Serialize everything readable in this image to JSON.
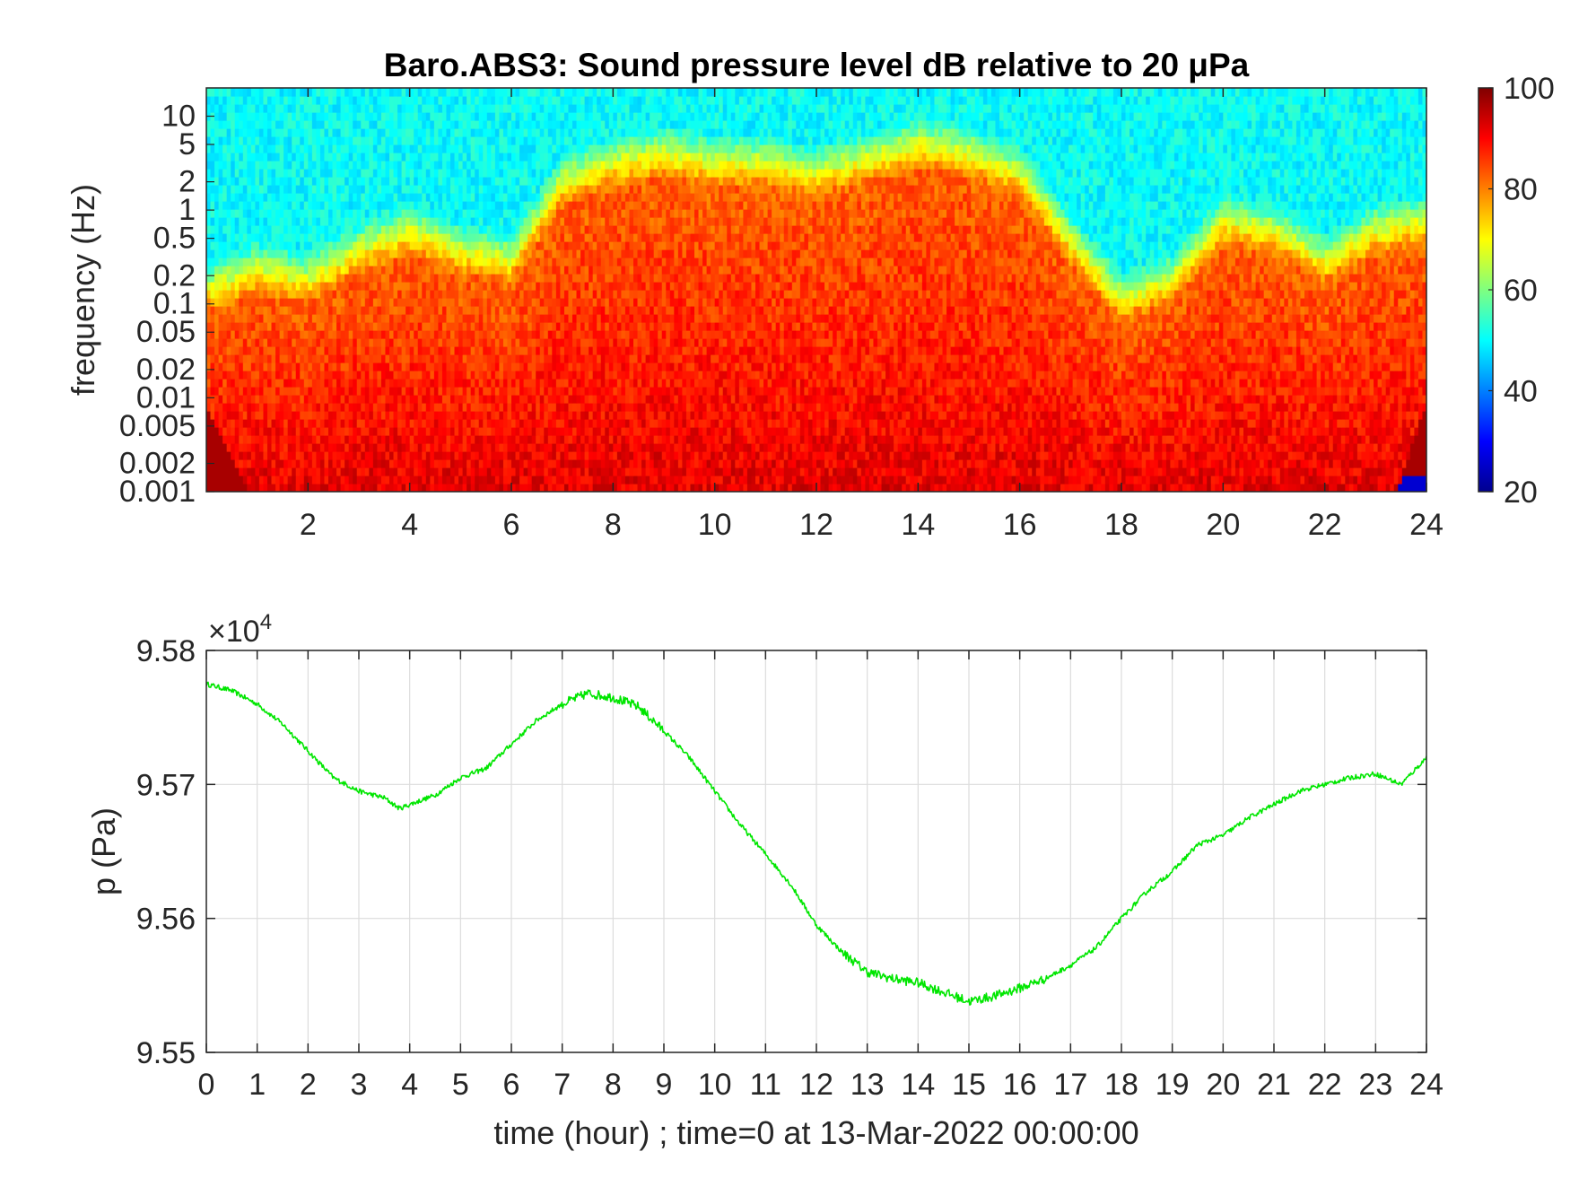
{
  "chart_data": [
    {
      "type": "heatmap",
      "title": "Baro.ABS3: Sound pressure level dB relative to 20 μPa",
      "xlabel": "",
      "ylabel": "frequency (Hz)",
      "x_ticks": [
        "2",
        "4",
        "6",
        "8",
        "10",
        "12",
        "14",
        "16",
        "18",
        "20",
        "22",
        "24"
      ],
      "x_tick_values": [
        2,
        4,
        6,
        8,
        10,
        12,
        14,
        16,
        18,
        20,
        22,
        24
      ],
      "xlim": [
        0,
        24
      ],
      "y_scale": "log",
      "ylim": [
        0.001,
        20
      ],
      "y_ticks": [
        "10",
        "5",
        "2",
        "1",
        "0.5",
        "0.2",
        "0.1",
        "0.05",
        "0.02",
        "0.01",
        "0.005",
        "0.002",
        "0.001"
      ],
      "y_tick_values": [
        10,
        5,
        2,
        1,
        0.5,
        0.2,
        0.1,
        0.05,
        0.02,
        0.01,
        0.005,
        0.002,
        0.001
      ],
      "colorbar": {
        "colormap": "jet",
        "range": [
          20,
          100
        ],
        "ticks": [
          "100",
          "80",
          "60",
          "40",
          "20"
        ],
        "tick_values": [
          100,
          80,
          60,
          40,
          20
        ]
      },
      "hour_level_profile": [
        {
          "hour": 0,
          "level": 0.25
        },
        {
          "hour": 1,
          "level": 0.35
        },
        {
          "hour": 2,
          "level": 0.3
        },
        {
          "hour": 3,
          "level": 0.45
        },
        {
          "hour": 4,
          "level": 0.55
        },
        {
          "hour": 5,
          "level": 0.45
        },
        {
          "hour": 6,
          "level": 0.4
        },
        {
          "hour": 7,
          "level": 0.8
        },
        {
          "hour": 8,
          "level": 0.9
        },
        {
          "hour": 9,
          "level": 0.95
        },
        {
          "hour": 10,
          "level": 0.9
        },
        {
          "hour": 11,
          "level": 0.9
        },
        {
          "hour": 12,
          "level": 0.85
        },
        {
          "hour": 13,
          "level": 0.92
        },
        {
          "hour": 14,
          "level": 1.0
        },
        {
          "hour": 15,
          "level": 0.95
        },
        {
          "hour": 16,
          "level": 0.85
        },
        {
          "hour": 17,
          "level": 0.5
        },
        {
          "hour": 18,
          "level": 0.2
        },
        {
          "hour": 19,
          "level": 0.3
        },
        {
          "hour": 20,
          "level": 0.6
        },
        {
          "hour": 21,
          "level": 0.55
        },
        {
          "hour": 22,
          "level": 0.4
        },
        {
          "hour": 23,
          "level": 0.55
        },
        {
          "hour": 24,
          "level": 0.6
        }
      ]
    },
    {
      "type": "line",
      "title": "",
      "xlabel": "time (hour) ; time=0 at 13-Mar-2022 00:00:00",
      "ylabel": "p (Pa)",
      "exponent_label": "×10",
      "exponent_power": "4",
      "xlim": [
        0,
        24
      ],
      "ylim": [
        9.55,
        9.58
      ],
      "x_ticks": [
        "0",
        "1",
        "2",
        "3",
        "4",
        "5",
        "6",
        "7",
        "8",
        "9",
        "10",
        "11",
        "12",
        "13",
        "14",
        "15",
        "16",
        "17",
        "18",
        "19",
        "20",
        "21",
        "22",
        "23",
        "24"
      ],
      "y_ticks": [
        "9.58",
        "9.57",
        "9.56",
        "9.55"
      ],
      "y_tick_values": [
        9.58,
        9.57,
        9.56,
        9.55
      ],
      "grid": true,
      "series": [
        {
          "color": "#00e600",
          "x": [
            0,
            0.5,
            1,
            1.5,
            2,
            2.5,
            3,
            3.5,
            3.8,
            4,
            4.5,
            5,
            5.5,
            6,
            6.5,
            7,
            7.5,
            8,
            8.5,
            9,
            9.5,
            10,
            10.5,
            11,
            11.5,
            12,
            12.5,
            13,
            13.5,
            14,
            14.5,
            15,
            15.5,
            16,
            16.5,
            17,
            17.5,
            18,
            18.5,
            19,
            19.5,
            20,
            20.5,
            21,
            21.5,
            22,
            22.5,
            23,
            23.5,
            24
          ],
          "y": [
            9.5775,
            9.577,
            9.576,
            9.5745,
            9.5725,
            9.5705,
            9.5695,
            9.569,
            9.5682,
            9.5685,
            9.5692,
            9.5705,
            9.5712,
            9.573,
            9.5748,
            9.576,
            9.5768,
            9.5765,
            9.5758,
            9.574,
            9.572,
            9.5695,
            9.567,
            9.5648,
            9.5625,
            9.5595,
            9.5575,
            9.556,
            9.5555,
            9.5552,
            9.5545,
            9.5538,
            9.5542,
            9.5548,
            9.5555,
            9.5565,
            9.5578,
            9.56,
            9.562,
            9.5635,
            9.5655,
            9.5662,
            9.5675,
            9.5685,
            9.5695,
            9.57,
            9.5705,
            9.5708,
            9.57,
            9.572
          ]
        }
      ]
    }
  ]
}
